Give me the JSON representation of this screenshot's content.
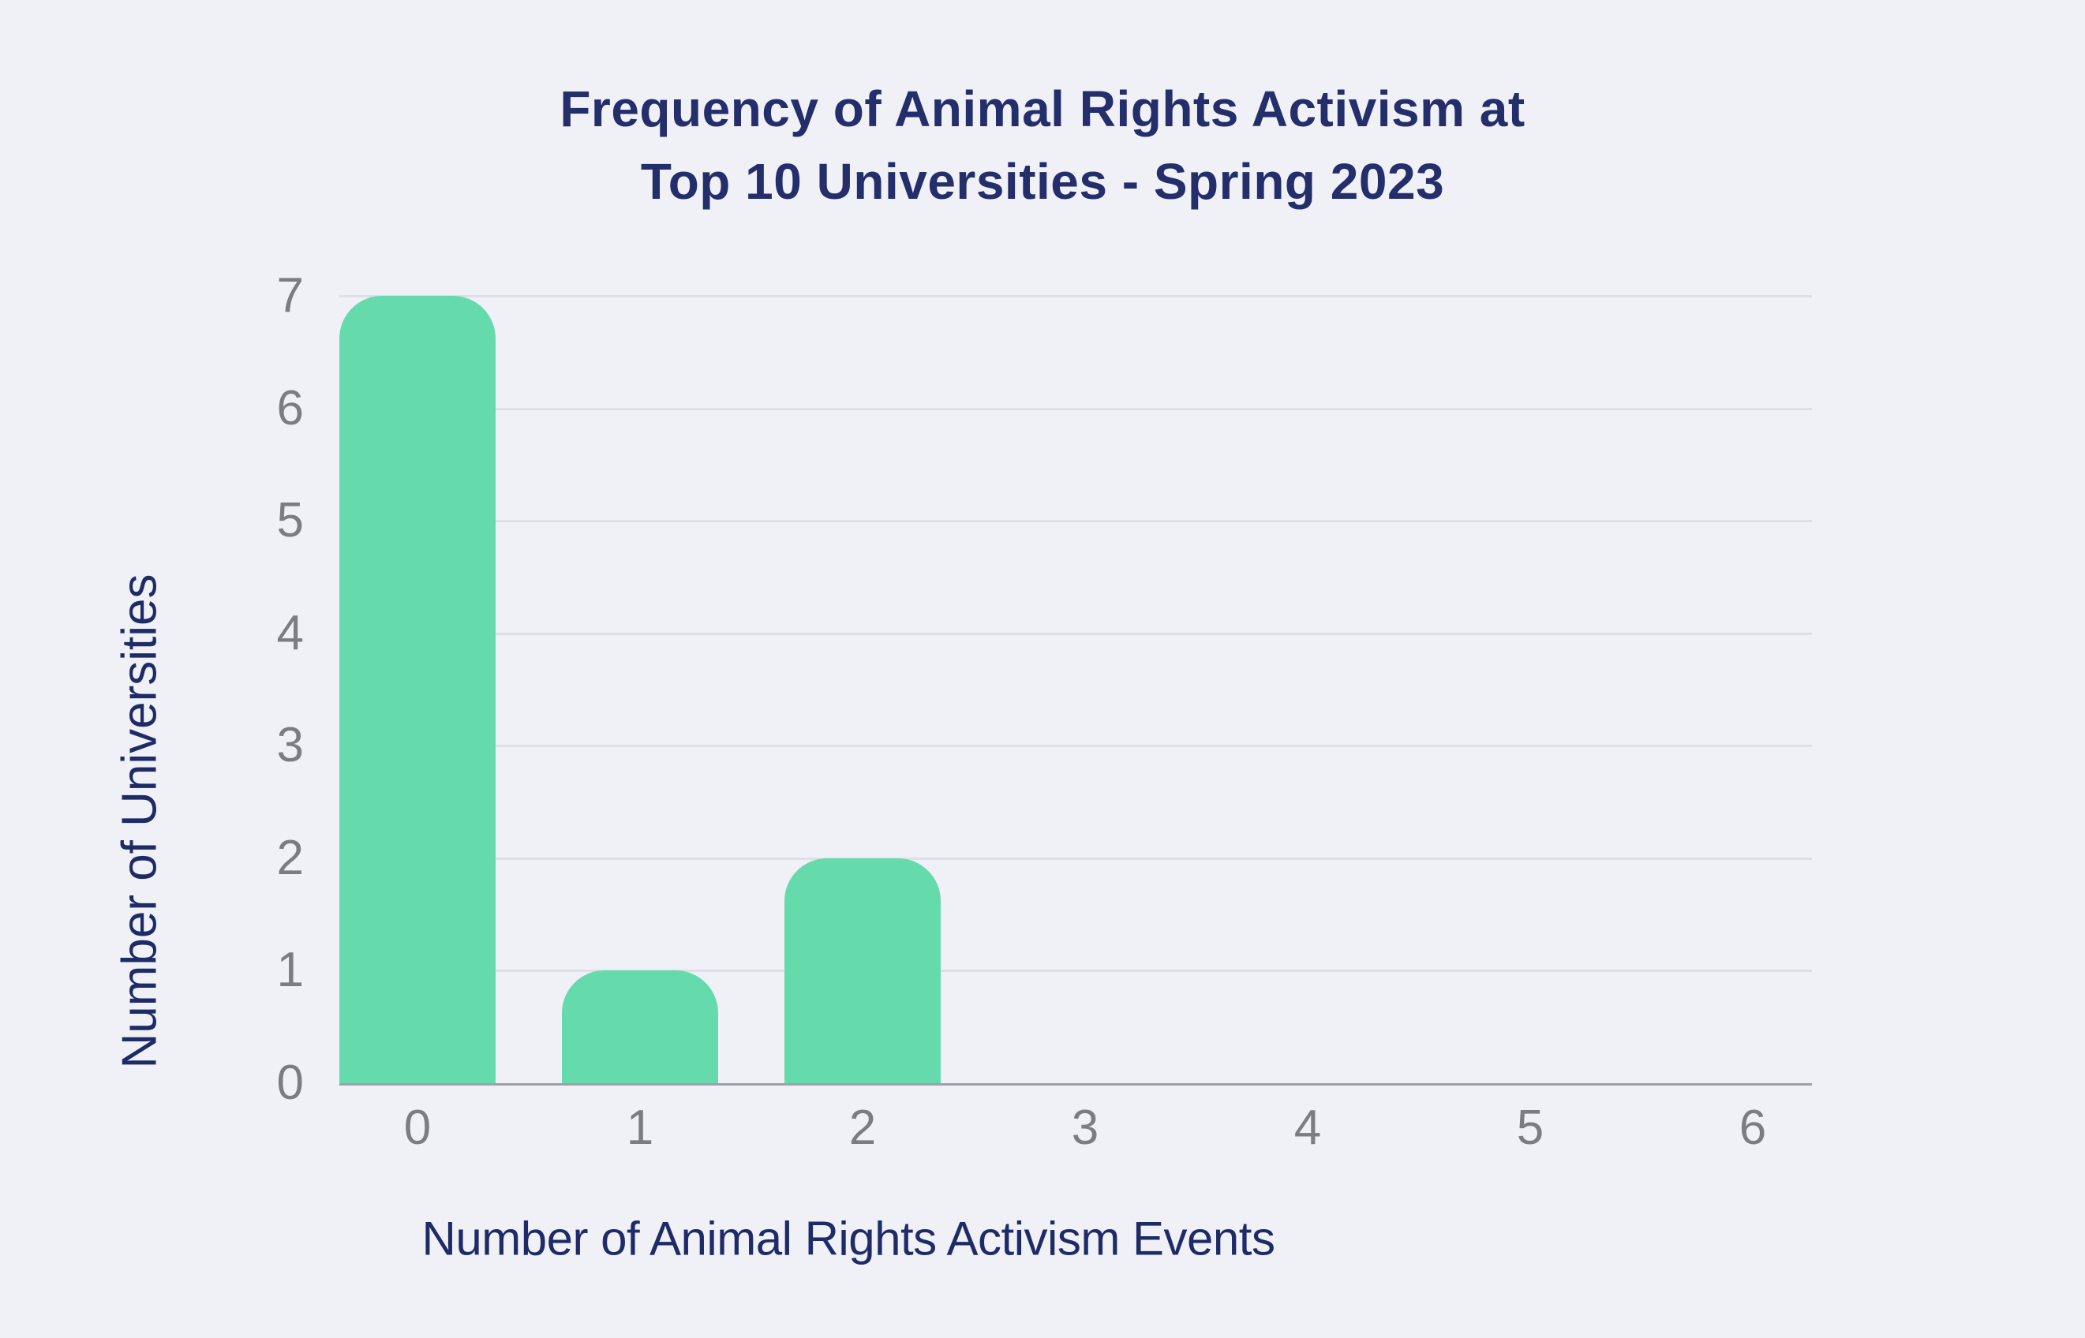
{
  "page": {
    "background_color": "#f0f1f6"
  },
  "title": {
    "line1": "Frequency of Animal Rights Activism at",
    "line2": "Top 10 Universities - Spring 2023",
    "color": "#242e6b"
  },
  "chart_data": {
    "type": "bar",
    "title": "Frequency of Animal Rights Activism at Top 10 Universities - Spring 2023",
    "categories": [
      "0",
      "1",
      "2",
      "3",
      "4",
      "5",
      "6"
    ],
    "values": [
      7,
      1,
      2,
      0,
      0,
      0,
      0
    ],
    "xlabel": "Number of Animal Rights Activism Events",
    "ylabel": "Number of Universities",
    "ylim": [
      0,
      7
    ],
    "yticks": [
      0,
      1,
      2,
      3,
      4,
      5,
      6,
      7
    ],
    "grid": true,
    "legend": false,
    "bar_color": "#65dbad",
    "gridline_color": "#dee0e7",
    "axis_line_color": "#9fa1a9",
    "tick_label_color": "#7b7d83"
  }
}
